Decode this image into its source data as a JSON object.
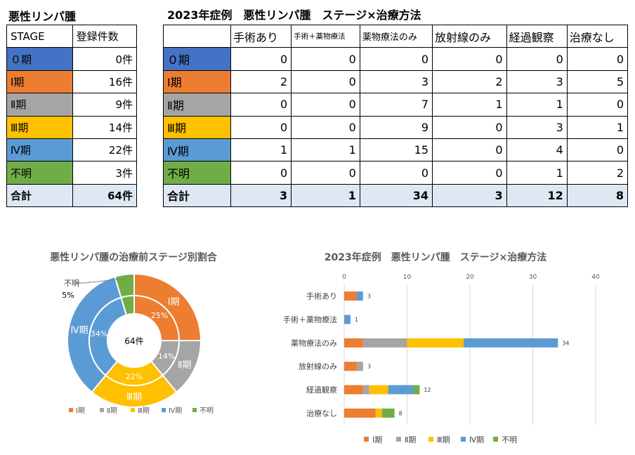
{
  "colors": {
    "stage0": "#4472c4",
    "stage1": "#ed7d31",
    "stage2": "#a5a5a5",
    "stage3": "#ffc000",
    "stage4": "#5b9bd5",
    "unknown": "#70ad47",
    "total_bg": "#dde8f4"
  },
  "left_table": {
    "title": "悪性リンパ腫",
    "header": [
      "STAGE",
      "登録件数"
    ],
    "rows": [
      {
        "stage": "０期",
        "count": "0件",
        "color_key": "stage0"
      },
      {
        "stage": "Ⅰ期",
        "count": "16件",
        "color_key": "stage1"
      },
      {
        "stage": "Ⅱ期",
        "count": "9件",
        "color_key": "stage2"
      },
      {
        "stage": "Ⅲ期",
        "count": "14件",
        "color_key": "stage3"
      },
      {
        "stage": "Ⅳ期",
        "count": "22件",
        "color_key": "stage4"
      },
      {
        "stage": "不明",
        "count": "3件",
        "color_key": "unknown"
      }
    ],
    "total": {
      "label": "合計",
      "count": "64件"
    }
  },
  "right_table": {
    "title": "2023年症例　悪性リンパ腫　ステージ×治療方法",
    "columns": [
      "手術あり",
      "手術＋薬物療法",
      "薬物療法のみ",
      "放射線のみ",
      "経過観察",
      "治療なし"
    ],
    "rows": [
      {
        "stage": "０期",
        "color_key": "stage0",
        "values": [
          0,
          0,
          0,
          0,
          0,
          0
        ]
      },
      {
        "stage": "Ⅰ期",
        "color_key": "stage1",
        "values": [
          2,
          0,
          3,
          2,
          3,
          5
        ]
      },
      {
        "stage": "Ⅱ期",
        "color_key": "stage2",
        "values": [
          0,
          0,
          7,
          1,
          1,
          0
        ]
      },
      {
        "stage": "Ⅲ期",
        "color_key": "stage3",
        "values": [
          0,
          0,
          9,
          0,
          3,
          1
        ]
      },
      {
        "stage": "Ⅳ期",
        "color_key": "stage4",
        "values": [
          1,
          1,
          15,
          0,
          4,
          0
        ]
      },
      {
        "stage": "不明",
        "color_key": "unknown",
        "values": [
          0,
          0,
          0,
          0,
          1,
          2
        ]
      }
    ],
    "total": {
      "label": "合計",
      "values": [
        3,
        1,
        34,
        3,
        12,
        8
      ]
    }
  },
  "chart_data": [
    {
      "type": "pie",
      "subtype": "doughnut",
      "title": "悪性リンパ腫の治療前ステージ別割合",
      "center_label": "64件",
      "categories": [
        "Ⅰ期",
        "Ⅱ期",
        "Ⅲ期",
        "Ⅳ期",
        "不明"
      ],
      "values": [
        16,
        9,
        14,
        22,
        3
      ],
      "percent_labels": [
        "25%",
        "14%",
        "22%",
        "34%",
        "5%"
      ],
      "slice_labels": [
        "Ⅰ期",
        "Ⅱ期",
        "Ⅲ期",
        "Ⅳ期",
        "不明"
      ],
      "colors": [
        "#ed7d31",
        "#a5a5a5",
        "#ffc000",
        "#5b9bd5",
        "#70ad47"
      ],
      "legend": [
        "Ⅰ期",
        "Ⅱ期",
        "Ⅲ期",
        "Ⅳ期",
        "不明"
      ],
      "legend_position": "bottom"
    },
    {
      "type": "bar",
      "orientation": "horizontal",
      "stacked": true,
      "title": "2023年症例　悪性リンパ腫　ステージ×治療方法",
      "categories": [
        "手術あり",
        "手術＋薬物療法",
        "薬物療法のみ",
        "放射線のみ",
        "経過観察",
        "治療なし"
      ],
      "series": [
        {
          "name": "Ⅰ期",
          "color": "#ed7d31",
          "values": [
            2,
            0,
            3,
            2,
            3,
            5
          ]
        },
        {
          "name": "Ⅱ期",
          "color": "#a5a5a5",
          "values": [
            0,
            0,
            7,
            1,
            1,
            0
          ]
        },
        {
          "name": "Ⅲ期",
          "color": "#ffc000",
          "values": [
            0,
            0,
            9,
            0,
            3,
            1
          ]
        },
        {
          "name": "Ⅳ期",
          "color": "#5b9bd5",
          "values": [
            1,
            1,
            15,
            0,
            4,
            0
          ]
        },
        {
          "name": "不明",
          "color": "#70ad47",
          "values": [
            0,
            0,
            0,
            0,
            1,
            2
          ]
        }
      ],
      "totals": [
        3,
        1,
        34,
        3,
        12,
        8
      ],
      "xlim": [
        0,
        40
      ],
      "xticks": [
        0,
        10,
        20,
        30,
        40
      ],
      "axis_position": "top",
      "grid": true,
      "legend_position": "bottom"
    }
  ]
}
